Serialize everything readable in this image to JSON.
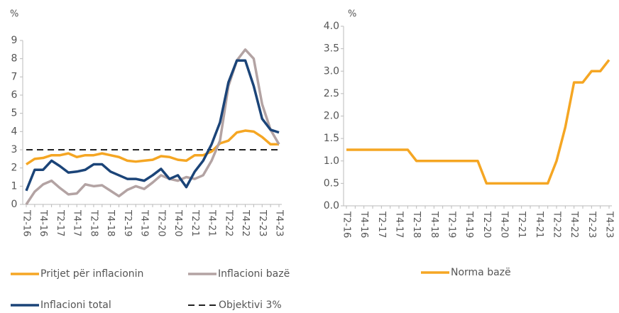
{
  "chart_data": [
    {
      "type": "line",
      "y_label": "%",
      "categories": [
        "T2-16",
        null,
        "T4-16",
        null,
        "T2-17",
        null,
        "T4-17",
        null,
        "T2-18",
        null,
        "T4-18",
        null,
        "T2-19",
        null,
        "T4-19",
        null,
        "T2-20",
        null,
        "T4-20",
        null,
        "T2-21",
        null,
        "T4-21",
        null,
        "T2-22",
        null,
        "T4-22",
        null,
        "T2-23",
        null,
        "T4-23"
      ],
      "ylim": [
        0,
        9
      ],
      "yticks": [
        0,
        1,
        2,
        3,
        4,
        5,
        6,
        7,
        8,
        9
      ],
      "series": [
        {
          "name": "Pritjet për inflacionin",
          "color": "#f5a623",
          "values": [
            2.2,
            2.5,
            2.55,
            2.7,
            2.7,
            2.8,
            2.6,
            2.7,
            2.7,
            2.8,
            2.7,
            2.6,
            2.4,
            2.35,
            2.4,
            2.45,
            2.65,
            2.6,
            2.45,
            2.4,
            2.7,
            2.7,
            2.9,
            3.35,
            3.5,
            3.95,
            4.05,
            4.0,
            3.7,
            3.3,
            3.3
          ]
        },
        {
          "name": "Inflacioni bazë",
          "color": "#b3a3a3",
          "values": [
            0,
            0.7,
            1.1,
            1.3,
            0.9,
            0.55,
            0.6,
            1.1,
            1.0,
            1.05,
            0.75,
            0.45,
            0.8,
            1.0,
            0.85,
            1.2,
            1.6,
            1.4,
            1.3,
            1.5,
            1.4,
            1.6,
            2.4,
            3.5,
            6.5,
            7.9,
            8.5,
            8.0,
            5.5,
            4.1,
            3.3
          ]
        },
        {
          "name": "Inflacioni total",
          "color": "#1b4478",
          "values": [
            0.75,
            1.9,
            1.9,
            2.4,
            2.1,
            1.75,
            1.8,
            1.9,
            2.2,
            2.2,
            1.8,
            1.6,
            1.4,
            1.4,
            1.3,
            1.6,
            1.95,
            1.4,
            1.6,
            0.95,
            1.8,
            2.4,
            3.3,
            4.5,
            6.7,
            7.9,
            7.9,
            6.5,
            4.7,
            4.1,
            3.95
          ]
        }
      ],
      "reference_line": {
        "name": "Objektivi 3%",
        "value": 3,
        "color": "#222222"
      }
    },
    {
      "type": "line",
      "y_label": "%",
      "categories": [
        "T2-16",
        null,
        "T4-16",
        null,
        "T2-17",
        null,
        "T4-17",
        null,
        "T2-18",
        null,
        "T4-18",
        null,
        "T2-19",
        null,
        "T4-19",
        null,
        "T2-20",
        null,
        "T4-20",
        null,
        "T2-21",
        null,
        "T4-21",
        null,
        "T2-22",
        null,
        "T4-22",
        null,
        "T2-23",
        null,
        "T4-23"
      ],
      "ylim": [
        0,
        4
      ],
      "yticks": [
        {
          "value": 0,
          "label": "0.0"
        },
        {
          "value": 0.5,
          "label": "0.5"
        },
        {
          "value": 1,
          "label": "1.0"
        },
        {
          "value": 1.5,
          "label": "1.5"
        },
        {
          "value": 2,
          "label": "2.0"
        },
        {
          "value": 2.5,
          "label": "2.5"
        },
        {
          "value": 3,
          "label": "3.0"
        },
        {
          "value": 3.5,
          "label": "3.5"
        },
        {
          "value": 4,
          "label": "4.0"
        }
      ],
      "series": [
        {
          "name": "Norma bazë",
          "color": "#f5a623",
          "values": [
            1.25,
            1.25,
            1.25,
            1.25,
            1.25,
            1.25,
            1.25,
            1.25,
            1.0,
            1.0,
            1.0,
            1.0,
            1.0,
            1.0,
            1.0,
            1.0,
            0.5,
            0.5,
            0.5,
            0.5,
            0.5,
            0.5,
            0.5,
            0.5,
            1.0,
            1.75,
            2.75,
            2.75,
            3.0,
            3.0,
            3.25
          ]
        }
      ]
    }
  ]
}
